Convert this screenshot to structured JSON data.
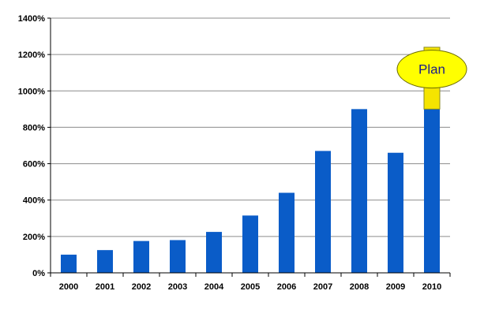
{
  "chart_data": {
    "type": "bar",
    "title": "",
    "xlabel": "",
    "ylabel": "",
    "categories": [
      "2000",
      "2001",
      "2002",
      "2003",
      "2004",
      "2005",
      "2006",
      "2007",
      "2008",
      "2009",
      "2010"
    ],
    "series": [
      {
        "color": "#0a5cc8",
        "values": [
          100,
          125,
          175,
          180,
          225,
          315,
          440,
          670,
          900,
          660,
          900
        ]
      },
      {
        "color": "#f5e400",
        "values": [
          0,
          0,
          0,
          0,
          0,
          0,
          0,
          0,
          0,
          0,
          340
        ]
      }
    ],
    "stacked": true,
    "ylim": [
      0,
      1400
    ],
    "y_ticks": [
      0,
      200,
      400,
      600,
      800,
      1000,
      1200,
      1400
    ],
    "y_tick_format": "percent",
    "grid": "horizontal",
    "annotations": [
      {
        "text": "Plan",
        "category": "2010",
        "value": 1120,
        "fill": "#ffff00",
        "stroke": "#6b6b00",
        "text_color": "#1a1a8c"
      }
    ]
  }
}
